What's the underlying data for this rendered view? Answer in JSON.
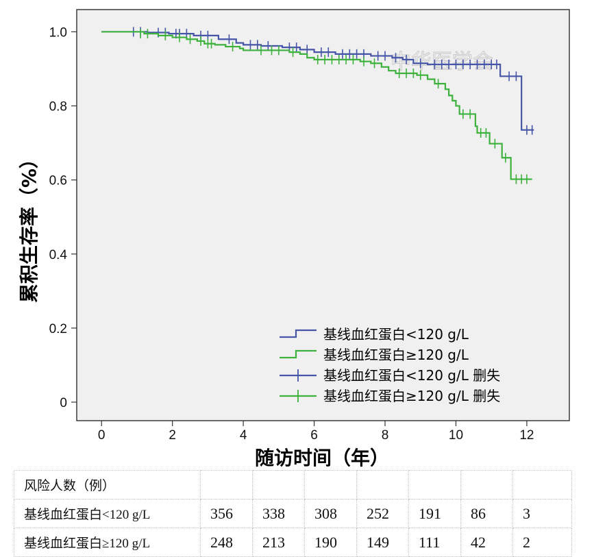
{
  "chart_data": {
    "type": "line",
    "subtype": "kaplan-meier",
    "xlabel": "随访时间（年）",
    "ylabel": "累积生存率（%）",
    "xlim": [
      -0.7,
      13.2
    ],
    "ylim": [
      -0.05,
      1.06
    ],
    "xticks": [
      0,
      2,
      4,
      6,
      8,
      10,
      12
    ],
    "yticks": [
      {
        "value": 1.0,
        "label": "1.0"
      },
      {
        "value": 0.8,
        "label": "0.8"
      },
      {
        "value": 0.6,
        "label": "0.6"
      },
      {
        "value": 0.4,
        "label": "0.4"
      },
      {
        "value": 0.2,
        "label": "0.2"
      },
      {
        "value": 0,
        "label": "0"
      }
    ],
    "grid": false,
    "legend_position": "bottom-right",
    "watermark": "中华医学会",
    "series": [
      {
        "name": "基线血红蛋白<120 g/L",
        "censor_label": "基线血红蛋白<120 g/L 删失",
        "color": "#4655a8",
        "steps": [
          [
            0,
            1.0
          ],
          [
            1.0,
            1.0
          ],
          [
            1.3,
            0.998
          ],
          [
            1.9,
            0.995
          ],
          [
            2.6,
            0.99
          ],
          [
            3.3,
            0.98
          ],
          [
            3.8,
            0.97
          ],
          [
            4.0,
            0.965
          ],
          [
            4.5,
            0.962
          ],
          [
            5.1,
            0.958
          ],
          [
            5.6,
            0.952
          ],
          [
            6.0,
            0.945
          ],
          [
            6.6,
            0.94
          ],
          [
            7.6,
            0.935
          ],
          [
            8.2,
            0.93
          ],
          [
            8.5,
            0.925
          ],
          [
            8.8,
            0.915
          ],
          [
            9.2,
            0.912
          ],
          [
            11.25,
            0.88
          ],
          [
            11.85,
            0.735
          ],
          [
            12.2,
            0.735
          ]
        ],
        "censored": [
          [
            0.9,
            1.0
          ],
          [
            1.1,
            1.0
          ],
          [
            1.6,
            0.998
          ],
          [
            1.8,
            0.998
          ],
          [
            2.1,
            0.995
          ],
          [
            2.2,
            0.995
          ],
          [
            2.4,
            0.995
          ],
          [
            2.8,
            0.99
          ],
          [
            3.0,
            0.99
          ],
          [
            3.6,
            0.98
          ],
          [
            4.2,
            0.965
          ],
          [
            4.4,
            0.965
          ],
          [
            4.7,
            0.962
          ],
          [
            5.3,
            0.958
          ],
          [
            5.5,
            0.958
          ],
          [
            5.8,
            0.952
          ],
          [
            6.2,
            0.945
          ],
          [
            6.4,
            0.945
          ],
          [
            6.8,
            0.94
          ],
          [
            7.0,
            0.94
          ],
          [
            7.2,
            0.94
          ],
          [
            7.4,
            0.94
          ],
          [
            7.8,
            0.935
          ],
          [
            8.0,
            0.935
          ],
          [
            8.3,
            0.93
          ],
          [
            8.6,
            0.925
          ],
          [
            9.0,
            0.915
          ],
          [
            9.4,
            0.912
          ],
          [
            9.6,
            0.912
          ],
          [
            9.8,
            0.912
          ],
          [
            10.0,
            0.912
          ],
          [
            10.2,
            0.912
          ],
          [
            10.4,
            0.912
          ],
          [
            10.6,
            0.912
          ],
          [
            10.8,
            0.912
          ],
          [
            11.0,
            0.912
          ],
          [
            11.15,
            0.912
          ],
          [
            11.5,
            0.88
          ],
          [
            11.7,
            0.88
          ],
          [
            12.0,
            0.735
          ],
          [
            12.15,
            0.735
          ]
        ]
      },
      {
        "name": "基线血红蛋白≥120 g/L",
        "censor_label": "基线血红蛋白≥120 g/L 删失",
        "color": "#3cb23c",
        "steps": [
          [
            0,
            1.0
          ],
          [
            0.75,
            1.0
          ],
          [
            1.2,
            0.995
          ],
          [
            1.6,
            0.99
          ],
          [
            2.0,
            0.985
          ],
          [
            2.4,
            0.98
          ],
          [
            2.7,
            0.975
          ],
          [
            2.9,
            0.968
          ],
          [
            3.2,
            0.965
          ],
          [
            3.5,
            0.96
          ],
          [
            3.9,
            0.955
          ],
          [
            4.0,
            0.95
          ],
          [
            5.3,
            0.945
          ],
          [
            5.6,
            0.94
          ],
          [
            5.8,
            0.93
          ],
          [
            6.0,
            0.925
          ],
          [
            7.3,
            0.92
          ],
          [
            7.6,
            0.915
          ],
          [
            7.9,
            0.905
          ],
          [
            8.1,
            0.895
          ],
          [
            8.3,
            0.888
          ],
          [
            8.9,
            0.883
          ],
          [
            9.2,
            0.872
          ],
          [
            9.4,
            0.86
          ],
          [
            9.7,
            0.845
          ],
          [
            9.8,
            0.828
          ],
          [
            9.9,
            0.814
          ],
          [
            10.0,
            0.8
          ],
          [
            10.1,
            0.778
          ],
          [
            10.55,
            0.745
          ],
          [
            10.6,
            0.727
          ],
          [
            10.95,
            0.698
          ],
          [
            11.3,
            0.66
          ],
          [
            11.55,
            0.602
          ],
          [
            12.15,
            0.602
          ]
        ],
        "censored": [
          [
            1.1,
            0.995
          ],
          [
            1.3,
            0.995
          ],
          [
            1.8,
            0.99
          ],
          [
            2.2,
            0.985
          ],
          [
            2.5,
            0.98
          ],
          [
            2.8,
            0.975
          ],
          [
            3.0,
            0.968
          ],
          [
            3.1,
            0.968
          ],
          [
            3.7,
            0.96
          ],
          [
            4.5,
            0.95
          ],
          [
            4.8,
            0.95
          ],
          [
            5.0,
            0.95
          ],
          [
            5.4,
            0.945
          ],
          [
            6.1,
            0.925
          ],
          [
            6.3,
            0.925
          ],
          [
            6.5,
            0.925
          ],
          [
            6.7,
            0.925
          ],
          [
            6.9,
            0.925
          ],
          [
            7.1,
            0.925
          ],
          [
            7.4,
            0.92
          ],
          [
            7.7,
            0.915
          ],
          [
            8.4,
            0.888
          ],
          [
            8.6,
            0.888
          ],
          [
            8.8,
            0.888
          ],
          [
            9.0,
            0.883
          ],
          [
            9.5,
            0.86
          ],
          [
            10.2,
            0.778
          ],
          [
            10.4,
            0.778
          ],
          [
            10.7,
            0.727
          ],
          [
            10.85,
            0.727
          ],
          [
            11.1,
            0.698
          ],
          [
            11.4,
            0.66
          ],
          [
            11.7,
            0.602
          ],
          [
            11.85,
            0.602
          ],
          [
            12.0,
            0.602
          ]
        ]
      }
    ]
  },
  "risk_table": {
    "header": "风险人数（例）",
    "rows": [
      {
        "label": "基线血红蛋白<120 g/L",
        "values": [
          "356",
          "338",
          "308",
          "252",
          "191",
          "86",
          "3"
        ]
      },
      {
        "label": "基线血红蛋白≥120 g/L",
        "values": [
          "248",
          "213",
          "190",
          "149",
          "111",
          "42",
          "2"
        ]
      }
    ]
  }
}
